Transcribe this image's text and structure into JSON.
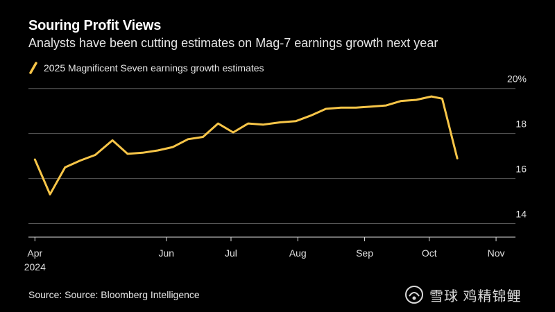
{
  "header": {
    "title": "Souring Profit Views",
    "subtitle": "Analysts have been cutting estimates on Mag-7 earnings growth next year"
  },
  "colors": {
    "line": "#f7c548",
    "grid": "#595959",
    "axis": "#e0e0e0",
    "background": "#000000"
  },
  "footer": {
    "source": "Source: Source: Bloomberg Intelligence"
  },
  "watermark": {
    "icon": "snowball-logo-icon",
    "text": "雪球 鸡精锦鲤"
  },
  "chart_data": {
    "type": "line",
    "title": "Souring Profit Views",
    "subtitle": "Analysts have been cutting estimates on Mag-7 earnings growth next year",
    "x_axis": {
      "type": "date",
      "range": [
        "2024-03-29",
        "2024-11-10"
      ],
      "ticks": [
        {
          "date": "2024-04-01",
          "label": "Apr",
          "sublabel": "2024"
        },
        {
          "date": "2024-06-01",
          "label": "Jun",
          "sublabel": ""
        },
        {
          "date": "2024-07-01",
          "label": "Jul",
          "sublabel": ""
        },
        {
          "date": "2024-08-01",
          "label": "Aug",
          "sublabel": ""
        },
        {
          "date": "2024-09-01",
          "label": "Sep",
          "sublabel": ""
        },
        {
          "date": "2024-10-01",
          "label": "Oct",
          "sublabel": ""
        },
        {
          "date": "2024-11-01",
          "label": "Nov",
          "sublabel": ""
        }
      ]
    },
    "y_axis": {
      "range": [
        13.4,
        20.3
      ],
      "ticks": [
        {
          "value": 14,
          "label": "14"
        },
        {
          "value": 16,
          "label": "16"
        },
        {
          "value": 18,
          "label": "18"
        },
        {
          "value": 20,
          "label": "20%"
        }
      ],
      "position": "right"
    },
    "grid": true,
    "legend": "top-left",
    "series": [
      {
        "name": "2025 Magnificent Seven earnings growth estimates",
        "color": "#f7c548",
        "points": [
          {
            "x": "2024-04-01",
            "y": 16.85
          },
          {
            "x": "2024-04-08",
            "y": 15.3
          },
          {
            "x": "2024-04-15",
            "y": 16.5
          },
          {
            "x": "2024-04-22",
            "y": 16.8
          },
          {
            "x": "2024-04-29",
            "y": 17.05
          },
          {
            "x": "2024-05-07",
            "y": 17.7
          },
          {
            "x": "2024-05-14",
            "y": 17.1
          },
          {
            "x": "2024-05-21",
            "y": 17.15
          },
          {
            "x": "2024-05-28",
            "y": 17.25
          },
          {
            "x": "2024-06-04",
            "y": 17.4
          },
          {
            "x": "2024-06-11",
            "y": 17.75
          },
          {
            "x": "2024-06-18",
            "y": 17.85
          },
          {
            "x": "2024-06-25",
            "y": 18.45
          },
          {
            "x": "2024-07-02",
            "y": 18.05
          },
          {
            "x": "2024-07-09",
            "y": 18.45
          },
          {
            "x": "2024-07-16",
            "y": 18.4
          },
          {
            "x": "2024-07-24",
            "y": 18.5
          },
          {
            "x": "2024-07-31",
            "y": 18.55
          },
          {
            "x": "2024-08-07",
            "y": 18.8
          },
          {
            "x": "2024-08-14",
            "y": 19.1
          },
          {
            "x": "2024-08-21",
            "y": 19.15
          },
          {
            "x": "2024-08-28",
            "y": 19.15
          },
          {
            "x": "2024-09-04",
            "y": 19.2
          },
          {
            "x": "2024-09-11",
            "y": 19.25
          },
          {
            "x": "2024-09-18",
            "y": 19.45
          },
          {
            "x": "2024-09-25",
            "y": 19.5
          },
          {
            "x": "2024-10-02",
            "y": 19.65
          },
          {
            "x": "2024-10-07",
            "y": 19.55
          },
          {
            "x": "2024-10-14",
            "y": 16.9
          }
        ]
      }
    ]
  }
}
